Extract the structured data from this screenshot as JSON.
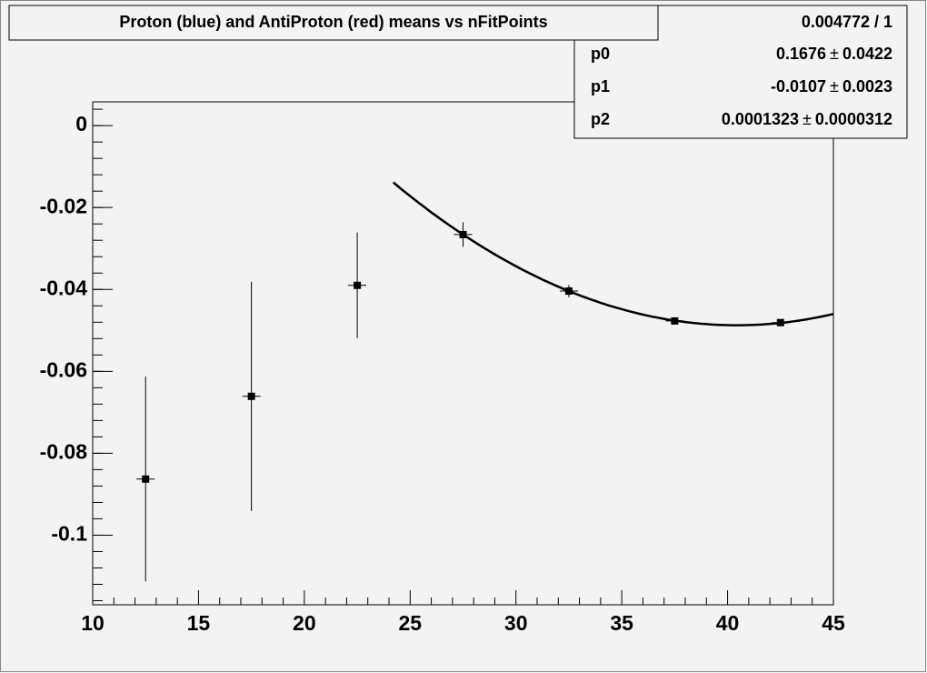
{
  "chart_data": {
    "type": "scatter",
    "title": "Proton (blue) and AntiProton (red) means vs nFitPoints",
    "x": [
      12.5,
      17.5,
      22.5,
      27.5,
      32.5,
      37.5,
      42.5
    ],
    "values": [
      -0.0863,
      -0.0661,
      -0.039,
      -0.0266,
      -0.0404,
      -0.0477,
      -0.0481
    ],
    "errors": [
      0.025,
      0.028,
      0.0129,
      0.003,
      0.0015,
      0.0007,
      0.0007
    ],
    "color": "#000000",
    "xlim": [
      10,
      45
    ],
    "xticks": [
      10,
      15,
      20,
      25,
      30,
      35,
      40,
      45
    ],
    "ylim": [
      -0.117,
      0.0058
    ],
    "yticks": [
      0,
      -0.02,
      -0.04,
      -0.06,
      -0.08,
      -0.1
    ],
    "fit": {
      "chi2_ndf": "0.004772 / 1",
      "plus_minus": "±",
      "range": [
        24.2,
        45
      ],
      "params": [
        {
          "name": "p0",
          "value": 0.1676,
          "error": 0.0422
        },
        {
          "name": "p1",
          "value": -0.0107,
          "error": 0.0023
        },
        {
          "name": "p2",
          "value": 0.0001323,
          "error": 3.12e-05
        }
      ]
    }
  }
}
